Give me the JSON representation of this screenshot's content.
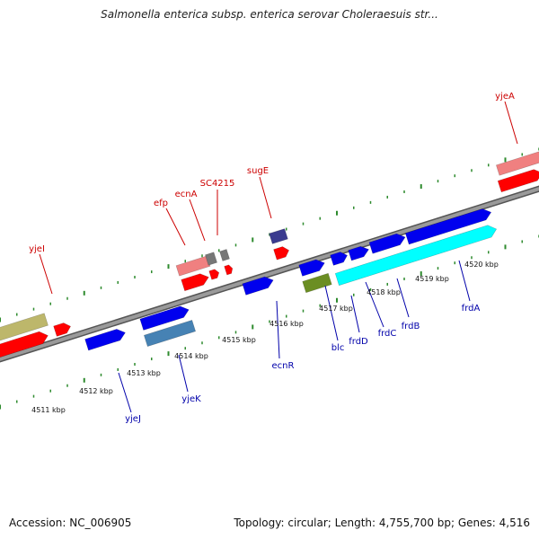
{
  "title": "Salmonella enterica subsp. enterica serovar Choleraesuis str...",
  "footer": {
    "accession": "Accession: NC_006905",
    "summary": "Topology: circular; Length: 4,755,700 bp; Genes: 4,516"
  },
  "colors": {
    "backbone": "#8c8c8c",
    "tick": "#2e8b2e",
    "label_forward": "#cc0000",
    "label_reverse": "#0000aa",
    "gene_red": "#ff0000",
    "gene_pink": "#f08080",
    "gene_blue": "#0000ee",
    "gene_cyan": "#00ffff",
    "gene_steelblue": "#4682b4",
    "gene_olive": "#6b8e23",
    "gene_khaki": "#bdb76b",
    "gene_gray": "#777777",
    "gene_navy": "#3b3b8f"
  },
  "scale_labels": [
    "4511 kbp",
    "4512 kbp",
    "4513 kbp",
    "4514 kbp",
    "4515 kbp",
    "4516 kbp",
    "4517 kbp",
    "4518 kbp",
    "4519 kbp",
    "4520 kbp"
  ],
  "forward_labels": [
    "yjeI",
    "efp",
    "ecnA",
    "SC4215",
    "sugE",
    "yjeA"
  ],
  "reverse_labels": [
    "yjeJ",
    "yjeK",
    "ecnR",
    "blc",
    "frdD",
    "frdC",
    "frdB",
    "frdA"
  ]
}
